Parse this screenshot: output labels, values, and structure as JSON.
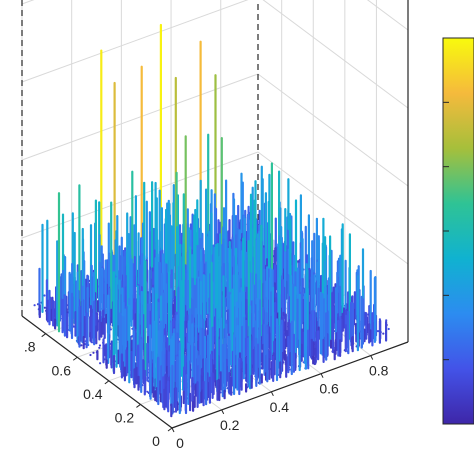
{
  "chart_data": {
    "type": "surface3d",
    "title": "",
    "xlabel": "",
    "ylabel": "",
    "zlabel": "",
    "x_ticks": [
      "0",
      "0.2",
      "0.4",
      "0.6",
      "0.8"
    ],
    "y_ticks": [
      "0",
      "0.2",
      "0.4",
      "0.6",
      ".8"
    ],
    "xlim": [
      0,
      0.95
    ],
    "ylim": [
      0,
      0.95
    ],
    "z_range": [
      0,
      1
    ],
    "grid": true,
    "colormap": "parula",
    "colormap_stops": [
      "#3e26a8",
      "#4353e8",
      "#2c8cf0",
      "#10b2d0",
      "#2fc395",
      "#a6bf3b",
      "#f5ba3c",
      "#f8fa0d"
    ],
    "colorbar": true,
    "ridges": [
      {
        "x": 0.3,
        "y": 0.92,
        "z": 0.62
      },
      {
        "x": 0.36,
        "y": 0.93,
        "z": 0.52
      },
      {
        "x": 0.45,
        "y": 0.9,
        "z": 0.55
      },
      {
        "x": 0.54,
        "y": 0.92,
        "z": 0.63
      },
      {
        "x": 0.6,
        "y": 0.92,
        "z": 0.48
      },
      {
        "x": 0.7,
        "y": 0.92,
        "z": 0.55
      },
      {
        "x": 0.76,
        "y": 0.92,
        "z": 0.45
      },
      {
        "x": 0.5,
        "y": 0.7,
        "z": 0.42
      },
      {
        "x": 0.62,
        "y": 0.66,
        "z": 0.4
      },
      {
        "x": 0.4,
        "y": 0.6,
        "z": 0.38
      },
      {
        "x": 0.2,
        "y": 0.7,
        "z": 0.32
      },
      {
        "x": 0.72,
        "y": 0.5,
        "z": 0.36
      },
      {
        "x": 0.3,
        "y": 0.4,
        "z": 0.28
      },
      {
        "x": 0.55,
        "y": 0.3,
        "z": 0.3
      },
      {
        "x": 0.8,
        "y": 0.3,
        "z": 0.26
      }
    ]
  }
}
